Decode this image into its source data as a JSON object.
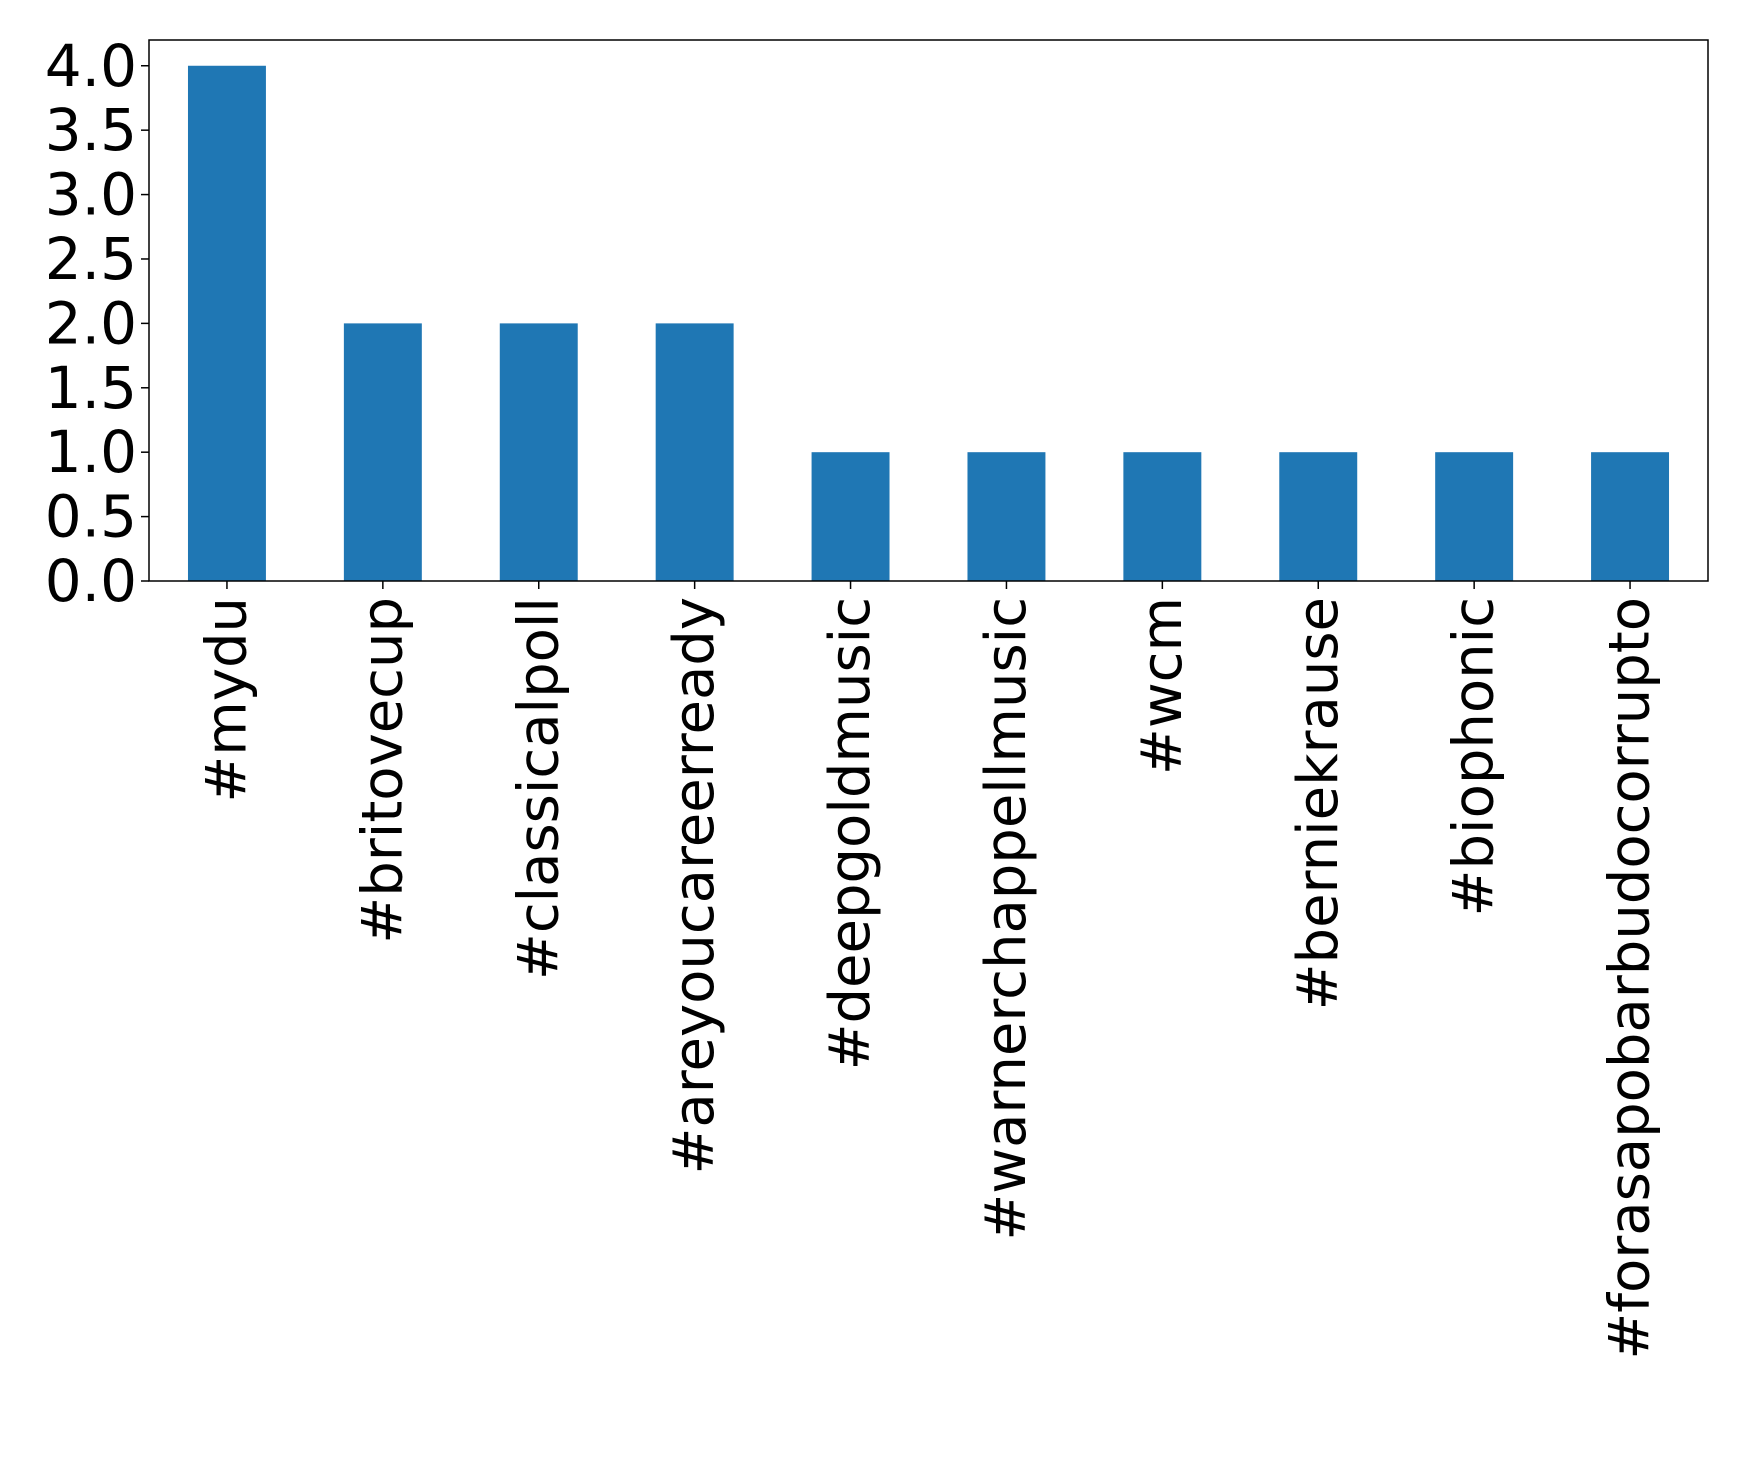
{
  "chart_data": {
    "type": "bar",
    "categories": [
      "#mydu",
      "#britovecup",
      "#classicalpoll",
      "#areyoucareerready",
      "#deepgoldmusic",
      "#warnerchappellmusic",
      "#wcm",
      "#berniekrause",
      "#biophonic",
      "#forasapobarbudocorrupto"
    ],
    "values": [
      4,
      2,
      2,
      2,
      1,
      1,
      1,
      1,
      1,
      1
    ],
    "color": "#1f77b4",
    "ylim": [
      0,
      4.2
    ],
    "yticks": [
      {
        "value": 0,
        "label": "0.0"
      },
      0.5,
      {
        "value": 1,
        "label": "1.0"
      },
      1.5,
      {
        "value": 2,
        "label": "2.0"
      },
      2.5,
      {
        "value": 3,
        "label": "3.0"
      },
      3.5,
      {
        "value": 4,
        "label": "4.0"
      }
    ],
    "grid": false
  }
}
